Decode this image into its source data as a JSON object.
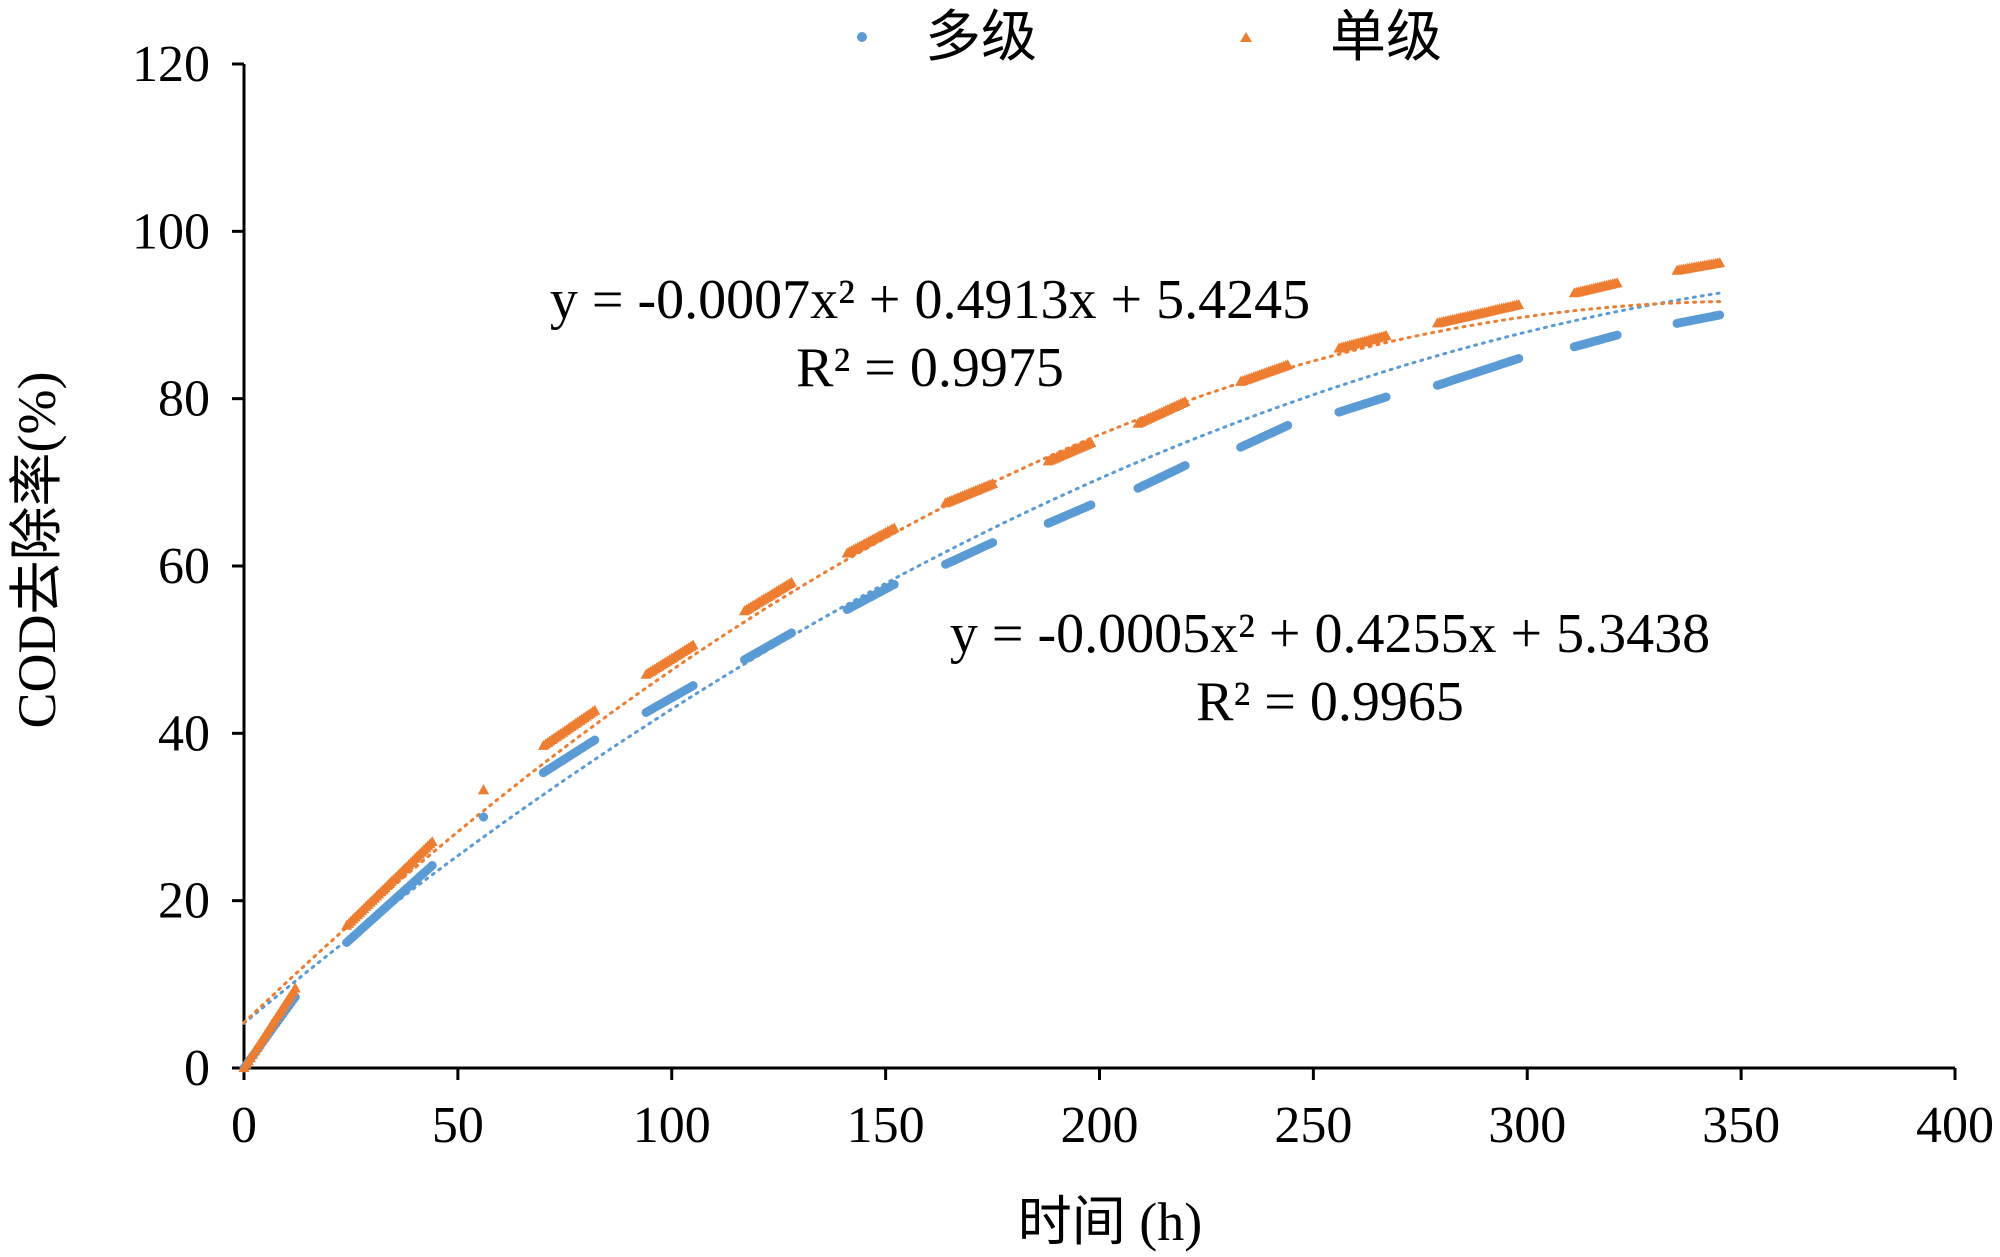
{
  "chart_data": {
    "type": "scatter",
    "xlabel": "时间 (h)",
    "ylabel": "COD去除率(%)",
    "xlim": [
      0,
      400
    ],
    "ylim": [
      0,
      120
    ],
    "xticks": [
      "0",
      "50",
      "100",
      "150",
      "200",
      "250",
      "300",
      "350",
      "400"
    ],
    "yticks": [
      "0",
      "20",
      "40",
      "60",
      "80",
      "100",
      "120"
    ],
    "grid": false,
    "legend_position": "top",
    "series": [
      {
        "name": "多级",
        "marker": "circle",
        "color": "#5b9bd5",
        "trendline": {
          "a": -0.0005,
          "b": 0.4255,
          "c": 5.3438
        },
        "equation": "y = -0.0005x² + 0.4255x + 5.3438",
        "r2": "R² = 0.9965",
        "segments": [
          {
            "x": [
              0,
              12
            ],
            "y": [
              0,
              8.5
            ]
          },
          {
            "x": [
              24,
              44
            ],
            "y": [
              15,
              24.2
            ]
          },
          {
            "x": [
              56,
              56
            ],
            "y": [
              30,
              30
            ]
          },
          {
            "x": [
              70,
              82
            ],
            "y": [
              35.3,
              39.2
            ]
          },
          {
            "x": [
              94,
              105
            ],
            "y": [
              42.5,
              45.7
            ]
          },
          {
            "x": [
              117,
              128
            ],
            "y": [
              48.8,
              52
            ]
          },
          {
            "x": [
              141,
              152
            ],
            "y": [
              54.8,
              57.8
            ]
          },
          {
            "x": [
              164,
              175
            ],
            "y": [
              60.2,
              62.8
            ]
          },
          {
            "x": [
              188,
              198
            ],
            "y": [
              65.1,
              67.3
            ]
          },
          {
            "x": [
              209,
              220
            ],
            "y": [
              69.3,
              72
            ]
          },
          {
            "x": [
              233,
              244
            ],
            "y": [
              74.2,
              76.8
            ]
          },
          {
            "x": [
              256,
              267
            ],
            "y": [
              78.4,
              80.2
            ]
          },
          {
            "x": [
              279,
              298
            ],
            "y": [
              81.6,
              84.8
            ]
          },
          {
            "x": [
              311,
              321
            ],
            "y": [
              86.2,
              87.6
            ]
          },
          {
            "x": [
              335,
              345
            ],
            "y": [
              89,
              90
            ]
          }
        ]
      },
      {
        "name": "单级",
        "marker": "triangle",
        "color": "#ed7d31",
        "trendline": {
          "a": -0.0007,
          "b": 0.4913,
          "c": 5.4245
        },
        "equation": "y = -0.0007x² + 0.4913x + 5.4245",
        "r2": "R² = 0.9975",
        "segments": [
          {
            "x": [
              0,
              12
            ],
            "y": [
              0,
              9.5
            ]
          },
          {
            "x": [
              24,
              44
            ],
            "y": [
              17,
              27
            ]
          },
          {
            "x": [
              56,
              56
            ],
            "y": [
              33.2,
              33.2
            ]
          },
          {
            "x": [
              70,
              82
            ],
            "y": [
              38.5,
              42.7
            ]
          },
          {
            "x": [
              94,
              105
            ],
            "y": [
              47,
              50.5
            ]
          },
          {
            "x": [
              117,
              128
            ],
            "y": [
              54.6,
              58
            ]
          },
          {
            "x": [
              141,
              152
            ],
            "y": [
              61.5,
              64.5
            ]
          },
          {
            "x": [
              164,
              175
            ],
            "y": [
              67.5,
              69.8
            ]
          },
          {
            "x": [
              188,
              198
            ],
            "y": [
              72.5,
              74.7
            ]
          },
          {
            "x": [
              209,
              220
            ],
            "y": [
              77,
              79.6
            ]
          },
          {
            "x": [
              233,
              244
            ],
            "y": [
              82,
              84
            ]
          },
          {
            "x": [
              256,
              267
            ],
            "y": [
              86,
              87.5
            ]
          },
          {
            "x": [
              279,
              298
            ],
            "y": [
              89,
              91.2
            ]
          },
          {
            "x": [
              311,
              321
            ],
            "y": [
              92.6,
              93.8
            ]
          },
          {
            "x": [
              335,
              345
            ],
            "y": [
              95.3,
              96.2
            ]
          }
        ]
      }
    ]
  }
}
